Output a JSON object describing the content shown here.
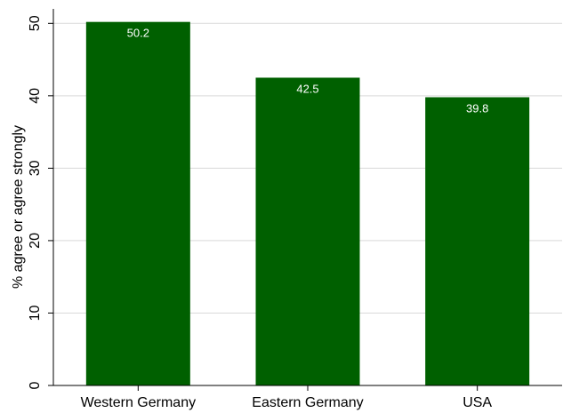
{
  "chart_data": {
    "type": "bar",
    "title": "",
    "xlabel": "",
    "ylabel": "% agree or agree strongly",
    "categories": [
      "Western Germany",
      "Eastern Germany",
      "USA"
    ],
    "values": [
      50.2,
      42.5,
      39.8
    ],
    "data_labels": [
      "50.2",
      "42.5",
      "39.8"
    ],
    "ylim": [
      0,
      52
    ],
    "yticks": [
      0,
      10,
      20,
      30,
      40,
      50
    ],
    "grid": true,
    "legend": "none",
    "colors": {
      "bar": "#006000",
      "grid": "#d9d9d9",
      "axis": "#000000",
      "data_label": "#ffffff"
    }
  }
}
